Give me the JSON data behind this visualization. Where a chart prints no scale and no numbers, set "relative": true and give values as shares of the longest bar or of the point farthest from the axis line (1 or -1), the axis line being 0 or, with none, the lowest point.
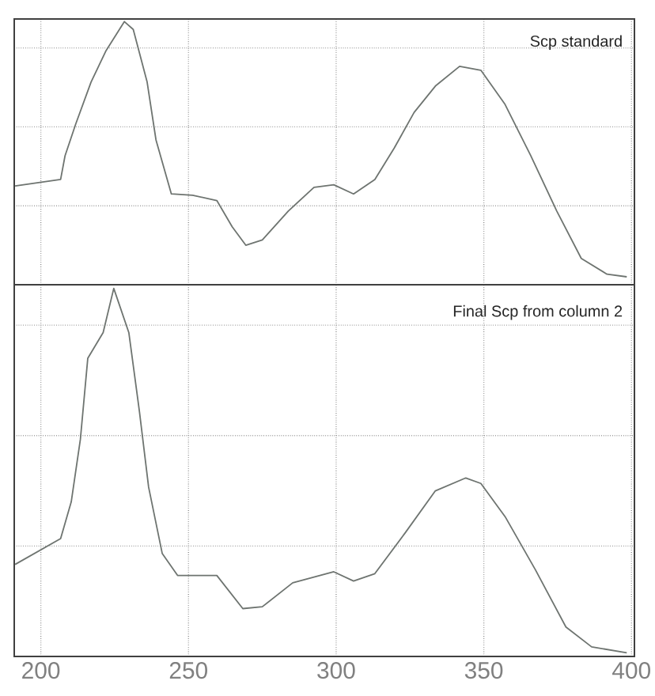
{
  "chart_data": [
    {
      "type": "line",
      "relative": true,
      "color": "#6e7470",
      "line_style": "solid",
      "marker": "none",
      "grid": true,
      "tick_labels": false,
      "xlim": [
        191,
        401
      ],
      "xticks": [
        200,
        250,
        300,
        350,
        400
      ],
      "annotations": [
        "Scp standard"
      ],
      "x": [
        191.3,
        206.7,
        208.2,
        211.8,
        217,
        222.1,
        228.3,
        231.3,
        236,
        239,
        244.2,
        251.4,
        259.6,
        264.8,
        269.4,
        275,
        283.8,
        292.5,
        299.2,
        305.9,
        313.1,
        319.7,
        326.4,
        333.6,
        341.8,
        349,
        357.2,
        365.9,
        374.7,
        383,
        391.7,
        398.4
      ],
      "values": [
        0.375,
        0.4,
        0.49,
        0.61,
        0.77,
        0.89,
        1.0,
        0.97,
        0.77,
        0.55,
        0.345,
        0.34,
        0.32,
        0.22,
        0.15,
        0.17,
        0.28,
        0.37,
        0.38,
        0.345,
        0.4,
        0.52,
        0.655,
        0.755,
        0.83,
        0.815,
        0.685,
        0.49,
        0.28,
        0.1,
        0.04,
        0.03
      ]
    },
    {
      "type": "line",
      "relative": true,
      "color": "#6e7470",
      "line_style": "solid",
      "marker": "none",
      "grid": true,
      "tick_labels": "x",
      "xlim": [
        191,
        401
      ],
      "xticks": [
        200,
        250,
        300,
        350,
        400
      ],
      "annotations": [
        "Final Scp from column 2"
      ],
      "x": [
        191.3,
        206.7,
        210.3,
        213.4,
        215.9,
        221.1,
        224.7,
        229.8,
        233.4,
        236.5,
        241.1,
        246.3,
        259.6,
        268.4,
        275,
        285.3,
        299.2,
        305.9,
        313.1,
        323.3,
        333.6,
        343.9,
        349,
        357.2,
        367.5,
        377.8,
        386.5,
        398.4
      ],
      "values": [
        0.25,
        0.32,
        0.42,
        0.59,
        0.81,
        0.88,
        1.0,
        0.88,
        0.665,
        0.46,
        0.28,
        0.22,
        0.22,
        0.13,
        0.135,
        0.2,
        0.23,
        0.205,
        0.225,
        0.335,
        0.45,
        0.485,
        0.47,
        0.38,
        0.235,
        0.08,
        0.026,
        0.01
      ]
    }
  ]
}
